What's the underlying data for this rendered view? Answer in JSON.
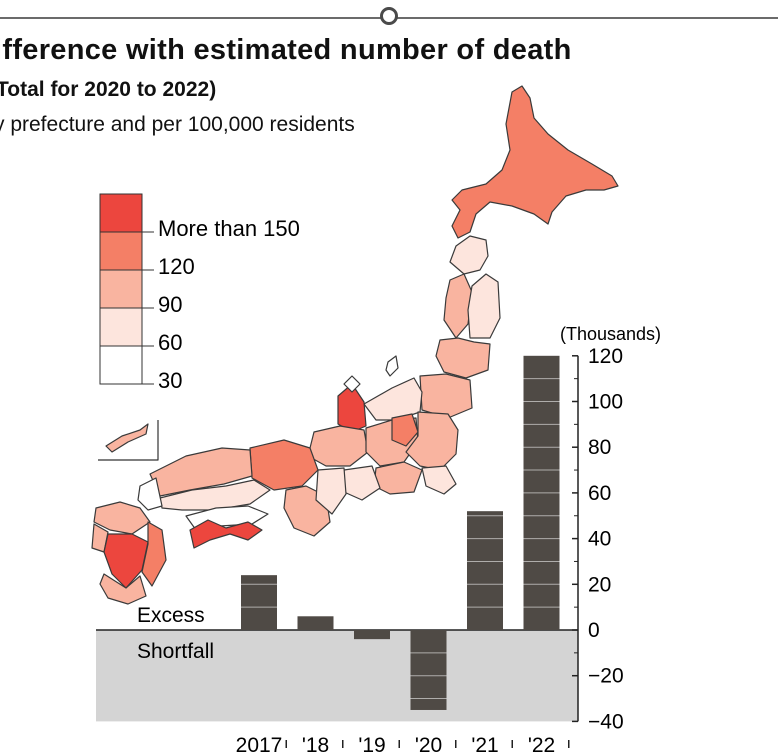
{
  "title": "ifference with estimated number of death",
  "subtitle_period": "Total for 2020 to 2022)",
  "subtitle_unit": "y prefecture and per 100,000 residents",
  "colors": {
    "bar": "#4f4a45",
    "shortfall_bg": "#d4d4d4",
    "map_bins": [
      "#ffffff",
      "#fde5dd",
      "#f9b4a0",
      "#f47f66",
      "#ec463e"
    ]
  },
  "map_legend": {
    "items": [
      "More than 150",
      "120",
      "90",
      "60",
      "30"
    ]
  },
  "chart_data": {
    "type": "bar",
    "title": "",
    "categories": [
      "2017",
      "'18",
      "'19",
      "'20",
      "'21",
      "'22"
    ],
    "values": [
      24,
      6,
      -4,
      -35,
      52,
      120
    ],
    "unit_label": "(Thousands)",
    "ylim": [
      -40,
      120
    ],
    "yticks": [
      -40,
      -20,
      0,
      20,
      40,
      60,
      80,
      100,
      120
    ],
    "ytick_labels": [
      "−40",
      "−20",
      "0",
      "20",
      "40",
      "60",
      "80",
      "100",
      "120"
    ],
    "region_labels": {
      "positive": "Excess",
      "negative": "Shortfall"
    },
    "grid": false
  }
}
